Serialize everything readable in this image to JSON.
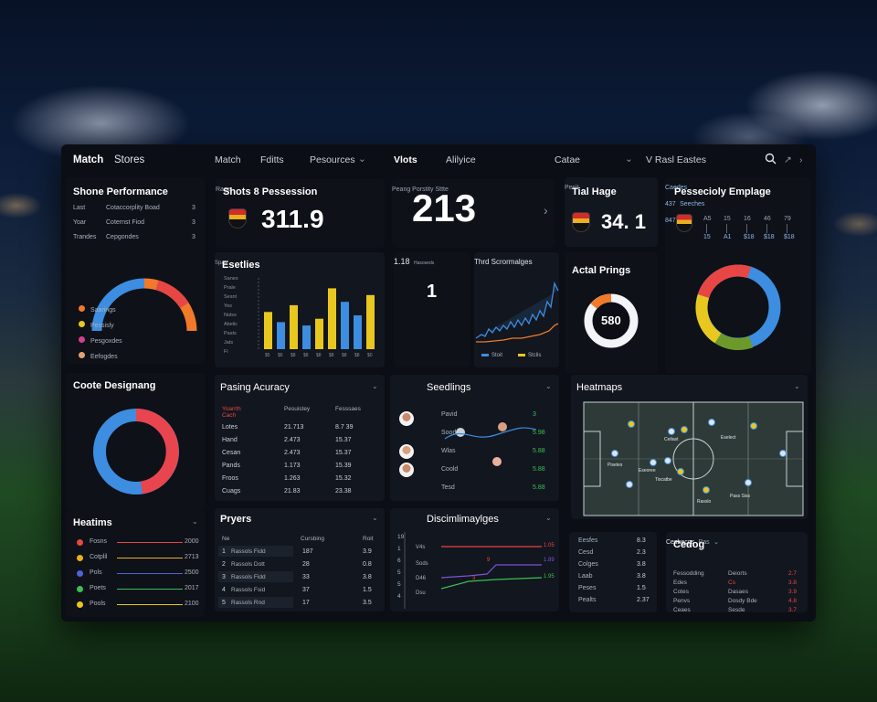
{
  "topbar": {
    "brand": "Match",
    "brand2": "Stores",
    "nav": [
      "Match",
      "Fditts",
      "Pesources",
      "Vlots",
      "Alilyice"
    ],
    "dropdown_label": "Catae",
    "profile_label": "V Rasl Eastes"
  },
  "shone_performance": {
    "title": "Shone Performance",
    "rows": [
      {
        "a": "Last",
        "b": "Cotaccorplity Boad",
        "c": "3"
      },
      {
        "a": "Yoar",
        "b": "Coternst Fiod",
        "c": "3"
      },
      {
        "a": "Trandes",
        "b": "Cepgondes",
        "c": "3"
      }
    ],
    "legend": [
      "Saarings",
      "Pessisly",
      "Pesgoxdes",
      "Eefogdes"
    ],
    "donut_value": 0.55
  },
  "shots": {
    "title": "Shots 8 Pessession",
    "value": "311.9",
    "sub": "Rage"
  },
  "big_stat": {
    "value": "213",
    "caption": "Peang Porstity Sttte"
  },
  "tial_hage": {
    "title": "Tial Hage",
    "value": "34. 1",
    "sub": "Pesit"
  },
  "pessecioly": {
    "title": "Pessecioly Emplage",
    "cols": [
      {
        "t": "A5",
        "b": "15"
      },
      {
        "t": "15",
        "b": "A1"
      },
      {
        "t": "16",
        "b": "$18"
      },
      {
        "t": "46",
        "b": "$18"
      },
      {
        "t": "79",
        "b": "$18"
      }
    ],
    "donut_left": "Caedes\n437",
    "donut_right": "Seeches\n847"
  },
  "esetlies": {
    "title": "Esetlies",
    "y_ticks": [
      "Sanes",
      "Prale",
      "Sesnt",
      "Yes",
      "Nolss",
      "Abelic",
      "Pasts",
      "Jats",
      "Fi"
    ],
    "x_ticks": [
      "$5",
      "$6",
      "$8",
      "$8",
      "$8",
      "$8",
      "$8",
      "$8",
      "$0"
    ],
    "xlabel": "Spas"
  },
  "mini": {
    "value": "1",
    "sub": "1.18",
    "caption": "Hasoseds"
  },
  "trend": {
    "title": "Thrd Scrormalges",
    "legend": [
      "Stoit",
      "Stclis"
    ]
  },
  "actal": {
    "title": "Actal Prings",
    "value": "580"
  },
  "coote": {
    "title": "Coote Designang",
    "donut_value": 0.45
  },
  "pasing": {
    "title": "Pasing Acuracy",
    "headers": [
      "Yoarrth Cach",
      "Pesuistey",
      "Fesssaes"
    ],
    "rows": [
      [
        "Lotes",
        "21.713",
        "8.7 39"
      ],
      [
        "Hand",
        "2.473",
        "15.37"
      ],
      [
        "Cesan",
        "2.473",
        "15.37"
      ],
      [
        "Pands",
        "1.173",
        "15.39"
      ],
      [
        "Froos",
        "1.263",
        "15.32"
      ],
      [
        "Cuags",
        "21.83",
        "23.38"
      ]
    ]
  },
  "seedlings": {
    "title": "Seedlings",
    "rows": [
      {
        "label": "Pavid",
        "val": "3"
      },
      {
        "label": "Sood",
        "val": "5.98"
      },
      {
        "label": "Wlas",
        "val": "5.88"
      },
      {
        "label": "Coold",
        "val": "5.88"
      },
      {
        "label": "Tesd",
        "val": "5.88"
      }
    ]
  },
  "heatmaps": {
    "title": "Heatmaps",
    "players": [
      "Cetlast",
      "Eselect",
      "Pisetes",
      "Eseoree",
      "Tiscatbe",
      "Pass Siss",
      "Rasslo"
    ]
  },
  "heatims": {
    "title": "Heatims",
    "rows": [
      {
        "name": "Fosns",
        "val": "2000",
        "color": "#e84545"
      },
      {
        "name": "Cotplil",
        "val": "2713",
        "color": "#e8b01f"
      },
      {
        "name": "Pols",
        "val": "2500",
        "color": "#4f63d8"
      },
      {
        "name": "Poets",
        "val": "2017",
        "color": "#3bbf57"
      },
      {
        "name": "Pools",
        "val": "2100",
        "color": "#e8c81f"
      }
    ]
  },
  "pryers": {
    "title": "Pryers",
    "headers": [
      "Ne",
      "Cursbing",
      "Roit"
    ],
    "rows": [
      [
        "1",
        "Rassols Fidd",
        "187",
        "3.9"
      ],
      [
        "2",
        "Rassols Dott",
        "28",
        "0.8"
      ],
      [
        "3",
        "Rassols Fidd",
        "33",
        "3.8"
      ],
      [
        "4",
        "Rassols Fsid",
        "37",
        "1.5"
      ],
      [
        "5",
        "Rassols Rnd",
        "17",
        "3.5"
      ]
    ]
  },
  "discim": {
    "title": "Discimlimaylges",
    "y_labels": [
      "19",
      "1",
      "6",
      "5",
      "5",
      "4"
    ],
    "legend": [
      "V4s",
      "Sods",
      "D46",
      "Dsu"
    ],
    "right_labels": [
      "1.05",
      "1.89",
      "1.95"
    ]
  },
  "small_stats": {
    "rows": [
      {
        "a": "Eesfes",
        "b": "8.3"
      },
      {
        "a": "Cesd",
        "b": "2.3"
      },
      {
        "a": "Colges",
        "b": "3.8"
      },
      {
        "a": "Laab",
        "b": "3.8"
      },
      {
        "a": "Peses",
        "b": "1.5"
      },
      {
        "a": "Pealts",
        "b": "2.37"
      }
    ]
  },
  "cedog": {
    "title": "Cedog",
    "header": "Cesbecgs",
    "header2": "Pas",
    "rows": [
      {
        "a": "Fessodding",
        "b": "Deiorts",
        "c": "2.7"
      },
      {
        "a": "Edes",
        "b": "Cs",
        "c": "3.8"
      },
      {
        "a": "Cotes",
        "b": "Dasaes",
        "c": "3.9"
      },
      {
        "a": "Penvs",
        "b": "Dosdy Bde",
        "c": "4.8"
      },
      {
        "a": "Ceaes",
        "b": "Sesde",
        "c": "3.7"
      }
    ]
  },
  "colors": {
    "accent_red": "#e84545",
    "accent_orange": "#f07a2a",
    "accent_blue": "#3d8de0",
    "accent_yellow": "#e8c81f",
    "accent_green": "#3bbf57",
    "panel": "#12161e"
  }
}
